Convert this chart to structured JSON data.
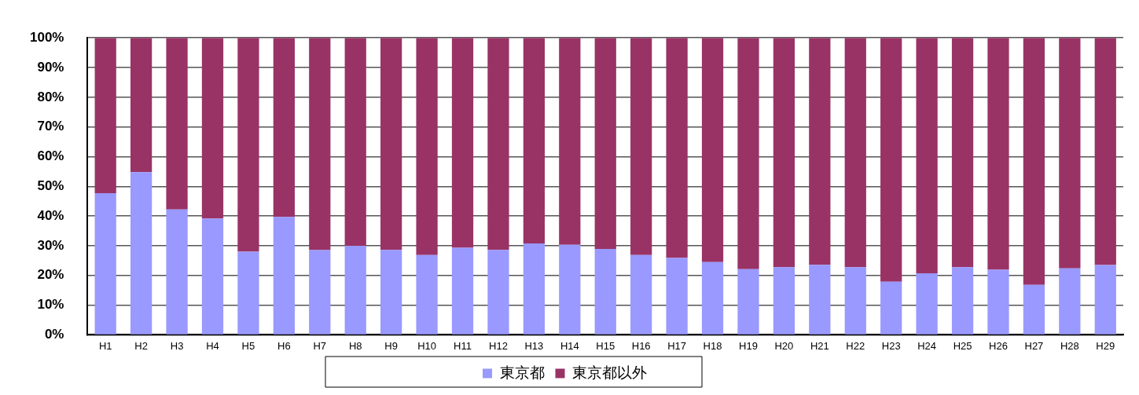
{
  "chart_data": {
    "type": "bar",
    "stacked": true,
    "categories": [
      "H1",
      "H2",
      "H3",
      "H4",
      "H5",
      "H6",
      "H7",
      "H8",
      "H9",
      "H10",
      "H11",
      "H12",
      "H13",
      "H14",
      "H15",
      "H16",
      "H17",
      "H18",
      "H19",
      "H20",
      "H21",
      "H22",
      "H23",
      "H24",
      "H25",
      "H26",
      "H27",
      "H28",
      "H29"
    ],
    "series": [
      {
        "name": "東京都",
        "color": "#9999ff",
        "values": [
          47.7,
          54.8,
          42.2,
          39.2,
          28.0,
          39.7,
          28.5,
          30.0,
          28.6,
          26.9,
          29.3,
          28.6,
          30.8,
          30.3,
          28.9,
          26.9,
          25.9,
          24.5,
          22.1,
          22.8,
          23.6,
          22.8,
          17.9,
          20.7,
          22.8,
          21.9,
          16.8,
          22.4,
          23.5
        ]
      },
      {
        "name": "東京都以外",
        "color": "#993366",
        "values": [
          52.3,
          45.2,
          57.8,
          60.8,
          72.0,
          60.3,
          71.5,
          70.0,
          71.4,
          73.1,
          70.7,
          71.4,
          69.2,
          69.7,
          71.1,
          73.1,
          74.1,
          75.5,
          77.9,
          77.2,
          76.4,
          77.2,
          82.1,
          79.3,
          77.2,
          78.1,
          83.2,
          77.6,
          76.5
        ]
      }
    ],
    "ylim": [
      0,
      100
    ],
    "yticks": [
      {
        "value": 0,
        "label": "0%"
      },
      {
        "value": 10,
        "label": "10%"
      },
      {
        "value": 20,
        "label": "20%"
      },
      {
        "value": 30,
        "label": "30%"
      },
      {
        "value": 40,
        "label": "40%"
      },
      {
        "value": 50,
        "label": "50%"
      },
      {
        "value": 60,
        "label": "60%"
      },
      {
        "value": 70,
        "label": "70%"
      },
      {
        "value": 80,
        "label": "80%"
      },
      {
        "value": 90,
        "label": "90%"
      },
      {
        "value": 100,
        "label": "100%"
      }
    ],
    "grid": "y",
    "legend": "bottom"
  }
}
